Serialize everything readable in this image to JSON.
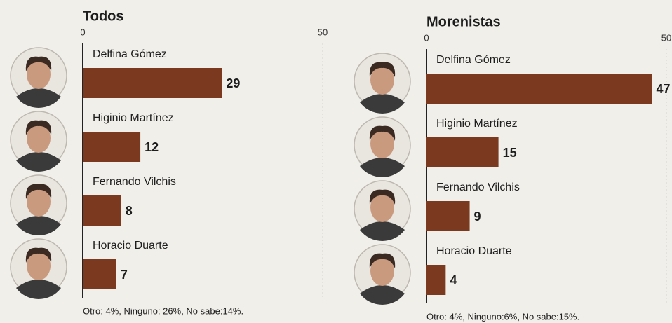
{
  "chart_data": [
    {
      "type": "bar",
      "orientation": "horizontal",
      "title": "Todos",
      "categories": [
        "Delfina Gómez",
        "Higinio Martínez",
        "Fernando Vilchis",
        "Horacio Duarte"
      ],
      "values": [
        29,
        12,
        8,
        7
      ],
      "color": "#7b3a1f",
      "xlim": [
        0,
        50
      ],
      "xticks": [
        0,
        50
      ],
      "annotation": "Otro: 4%, Ninguno: 26%, No sabe:14%."
    },
    {
      "type": "bar",
      "orientation": "horizontal",
      "title": "Morenistas",
      "categories": [
        "Delfina Gómez",
        "Higinio Martínez",
        "Fernando Vilchis",
        "Horacio Duarte"
      ],
      "values": [
        47,
        15,
        9,
        4
      ],
      "color": "#7b3a1f",
      "xlim": [
        0,
        50
      ],
      "xticks": [
        0,
        50
      ],
      "annotation": "Otro: 4%, Ninguno:6%, No sabe:15%."
    }
  ]
}
